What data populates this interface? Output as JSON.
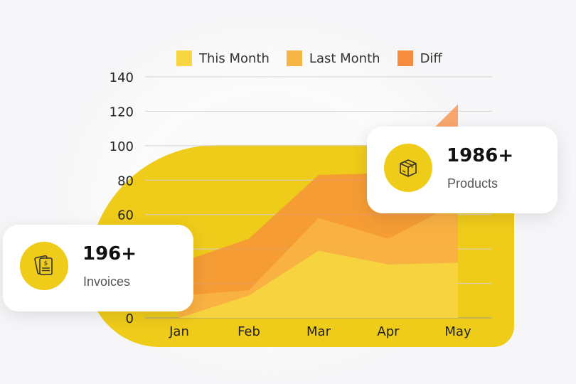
{
  "chart_data": {
    "type": "area",
    "categories": [
      "Jan",
      "Feb",
      "Mar",
      "Apr",
      "May"
    ],
    "ylim": [
      0,
      140
    ],
    "yticks": [
      0,
      20,
      40,
      60,
      80,
      100,
      120,
      140
    ],
    "grid": true,
    "legend_position": "top-center",
    "series": [
      {
        "name": "This Month",
        "color": "#f7d63f",
        "values": [
          0,
          13,
          39,
          31,
          32
        ]
      },
      {
        "name": "Last Month",
        "color": "#f9b544",
        "values": [
          13,
          16,
          58,
          46,
          67
        ]
      },
      {
        "name": "Diff",
        "color": "#f78c3f",
        "values": [
          32,
          46,
          83,
          84,
          124
        ]
      }
    ]
  },
  "cards": {
    "invoices": {
      "value": "196+",
      "label": "Invoices",
      "icon": "invoice-icon",
      "accent": "#efcb1a"
    },
    "products": {
      "value": "1986+",
      "label": "Products",
      "icon": "box-icon",
      "accent": "#efcb1a"
    }
  }
}
